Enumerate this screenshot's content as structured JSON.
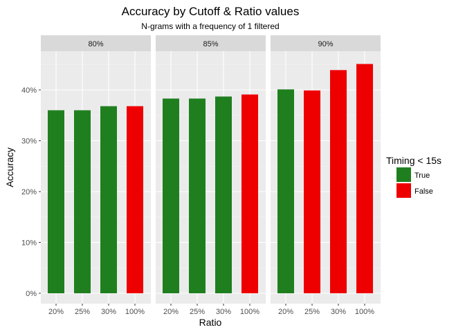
{
  "chart_data": {
    "type": "bar",
    "title": "Accuracy by Cutoff & Ratio values",
    "subtitle": "N-grams with a frequency of 1 filtered",
    "xlabel": "Ratio",
    "ylabel": "Accuracy",
    "ylim": [
      0,
      47
    ],
    "y_ticks": [
      0,
      10,
      20,
      30,
      40
    ],
    "y_tick_labels": [
      "0%",
      "10%",
      "20%",
      "30%",
      "40%"
    ],
    "categories": [
      "20%",
      "25%",
      "30%",
      "100%"
    ],
    "grid": true,
    "legend": {
      "title": "Timing < 15s",
      "placement": "right",
      "entries": [
        {
          "label": "True",
          "color": "#1f7f1f"
        },
        {
          "label": "False",
          "color": "#ee0000"
        }
      ]
    },
    "panels": [
      {
        "label": "80%",
        "values": [
          36.0,
          36.0,
          36.8,
          36.8
        ],
        "timing": [
          "True",
          "True",
          "True",
          "False"
        ]
      },
      {
        "label": "85%",
        "values": [
          38.3,
          38.3,
          38.7,
          39.1
        ],
        "timing": [
          "True",
          "True",
          "True",
          "False"
        ]
      },
      {
        "label": "90%",
        "values": [
          40.1,
          39.9,
          43.9,
          45.1
        ],
        "timing": [
          "True",
          "False",
          "False",
          "False"
        ]
      }
    ]
  }
}
